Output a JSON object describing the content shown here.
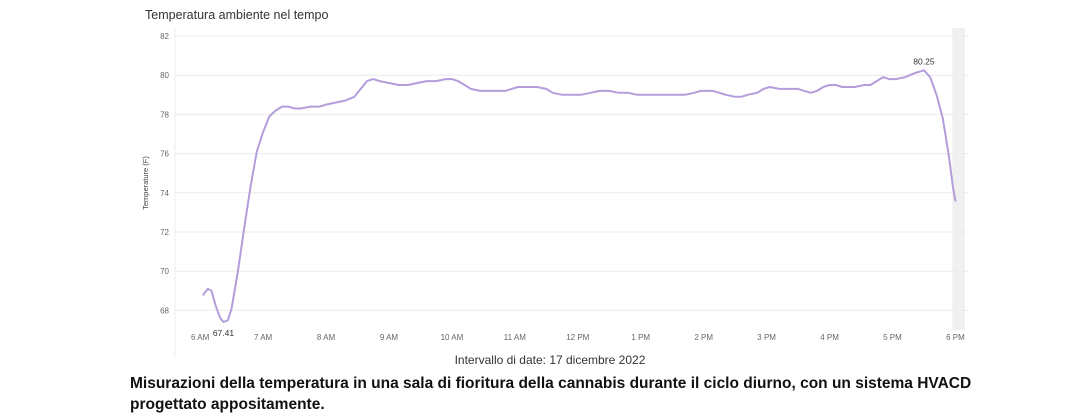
{
  "chart_data": {
    "type": "line",
    "title": "Temperatura ambiente nel tempo",
    "xlabel": "Intervallo di date: 17 dicembre 2022",
    "ylabel": "Temperature (F)",
    "ylim": [
      67,
      82
    ],
    "yticks": [
      68,
      70,
      72,
      74,
      76,
      78,
      80,
      82
    ],
    "xlim": [
      5.6,
      18.2
    ],
    "xticks": [
      {
        "x": 6,
        "label": "6 AM"
      },
      {
        "x": 7,
        "label": "7 AM"
      },
      {
        "x": 8,
        "label": "8 AM"
      },
      {
        "x": 9,
        "label": "9 AM"
      },
      {
        "x": 10,
        "label": "10 AM"
      },
      {
        "x": 11,
        "label": "11 AM"
      },
      {
        "x": 12,
        "label": "12 PM"
      },
      {
        "x": 13,
        "label": "1 PM"
      },
      {
        "x": 14,
        "label": "2 PM"
      },
      {
        "x": 15,
        "label": "3 PM"
      },
      {
        "x": 16,
        "label": "4 PM"
      },
      {
        "x": 17,
        "label": "5 PM"
      },
      {
        "x": 18,
        "label": "6 PM"
      }
    ],
    "grid": true,
    "line_color": "#b39ddb",
    "series": [
      {
        "points": [
          [
            6.05,
            68.8
          ],
          [
            6.12,
            69.1
          ],
          [
            6.18,
            69.0
          ],
          [
            6.25,
            68.2
          ],
          [
            6.32,
            67.6
          ],
          [
            6.37,
            67.41
          ],
          [
            6.44,
            67.5
          ],
          [
            6.5,
            68.1
          ],
          [
            6.6,
            70.0
          ],
          [
            6.7,
            72.2
          ],
          [
            6.8,
            74.3
          ],
          [
            6.9,
            76.1
          ],
          [
            7.0,
            77.1
          ],
          [
            7.1,
            77.9
          ],
          [
            7.2,
            78.2
          ],
          [
            7.3,
            78.4
          ],
          [
            7.4,
            78.4
          ],
          [
            7.5,
            78.3
          ],
          [
            7.6,
            78.3
          ],
          [
            7.75,
            78.4
          ],
          [
            7.9,
            78.4
          ],
          [
            8.0,
            78.5
          ],
          [
            8.15,
            78.6
          ],
          [
            8.3,
            78.7
          ],
          [
            8.45,
            78.9
          ],
          [
            8.55,
            79.3
          ],
          [
            8.65,
            79.7
          ],
          [
            8.75,
            79.8
          ],
          [
            8.85,
            79.7
          ],
          [
            9.0,
            79.6
          ],
          [
            9.15,
            79.5
          ],
          [
            9.3,
            79.5
          ],
          [
            9.45,
            79.6
          ],
          [
            9.6,
            79.7
          ],
          [
            9.75,
            79.7
          ],
          [
            9.9,
            79.8
          ],
          [
            10.0,
            79.8
          ],
          [
            10.1,
            79.7
          ],
          [
            10.2,
            79.5
          ],
          [
            10.3,
            79.3
          ],
          [
            10.45,
            79.2
          ],
          [
            10.6,
            79.2
          ],
          [
            10.75,
            79.2
          ],
          [
            10.85,
            79.2
          ],
          [
            10.95,
            79.3
          ],
          [
            11.05,
            79.4
          ],
          [
            11.2,
            79.4
          ],
          [
            11.35,
            79.4
          ],
          [
            11.5,
            79.3
          ],
          [
            11.6,
            79.1
          ],
          [
            11.75,
            79.0
          ],
          [
            11.9,
            79.0
          ],
          [
            12.05,
            79.0
          ],
          [
            12.2,
            79.1
          ],
          [
            12.35,
            79.2
          ],
          [
            12.5,
            79.2
          ],
          [
            12.65,
            79.1
          ],
          [
            12.8,
            79.1
          ],
          [
            12.95,
            79.0
          ],
          [
            13.1,
            79.0
          ],
          [
            13.25,
            79.0
          ],
          [
            13.4,
            79.0
          ],
          [
            13.55,
            79.0
          ],
          [
            13.7,
            79.0
          ],
          [
            13.85,
            79.1
          ],
          [
            13.95,
            79.2
          ],
          [
            14.05,
            79.2
          ],
          [
            14.15,
            79.2
          ],
          [
            14.25,
            79.1
          ],
          [
            14.35,
            79.0
          ],
          [
            14.5,
            78.9
          ],
          [
            14.6,
            78.9
          ],
          [
            14.7,
            79.0
          ],
          [
            14.85,
            79.1
          ],
          [
            14.95,
            79.3
          ],
          [
            15.05,
            79.4
          ],
          [
            15.2,
            79.3
          ],
          [
            15.35,
            79.3
          ],
          [
            15.5,
            79.3
          ],
          [
            15.6,
            79.2
          ],
          [
            15.7,
            79.1
          ],
          [
            15.8,
            79.2
          ],
          [
            15.9,
            79.4
          ],
          [
            16.0,
            79.5
          ],
          [
            16.1,
            79.5
          ],
          [
            16.2,
            79.4
          ],
          [
            16.3,
            79.4
          ],
          [
            16.4,
            79.4
          ],
          [
            16.55,
            79.5
          ],
          [
            16.65,
            79.5
          ],
          [
            16.75,
            79.7
          ],
          [
            16.85,
            79.9
          ],
          [
            16.95,
            79.8
          ],
          [
            17.05,
            79.8
          ],
          [
            17.2,
            79.9
          ],
          [
            17.35,
            80.1
          ],
          [
            17.5,
            80.25
          ],
          [
            17.6,
            79.9
          ],
          [
            17.7,
            79.0
          ],
          [
            17.8,
            77.8
          ],
          [
            17.9,
            75.8
          ],
          [
            17.96,
            74.3
          ],
          [
            18.0,
            73.6
          ]
        ]
      }
    ],
    "annotations": [
      {
        "x": 6.37,
        "y": 67.41,
        "text": "67.41",
        "position": "below"
      },
      {
        "x": 17.5,
        "y": 80.25,
        "text": "80.25",
        "position": "above"
      }
    ],
    "shaded_region": {
      "x_start": 17.95,
      "x_end": 18.15
    }
  },
  "footer": {
    "date_range": "Intervallo di date: 17 dicembre 2022",
    "caption": "Misurazioni della temperatura in una sala di fioritura della cannabis durante il ciclo diurno, con un sistema HVACD progettato appositamente."
  }
}
